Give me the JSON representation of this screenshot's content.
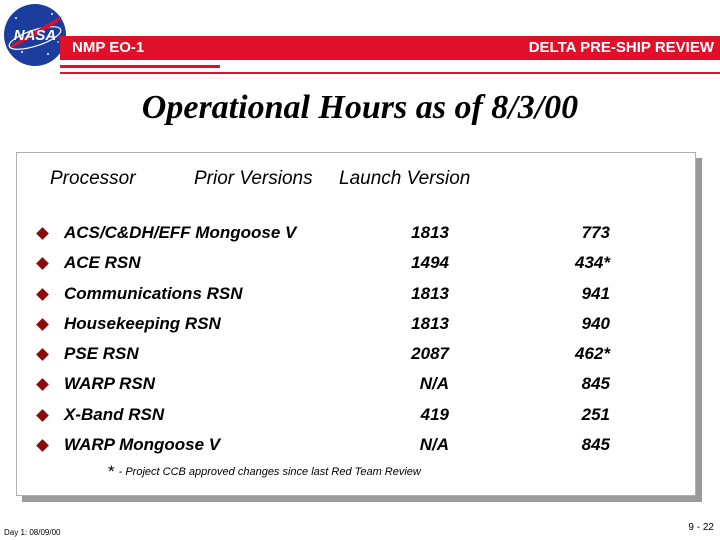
{
  "header": {
    "logo_text": "NASA",
    "left_label": "NMP EO-1",
    "right_label": "DELTA PRE-SHIP REVIEW",
    "bar_color": "#e0102a"
  },
  "title": "Operational Hours as of 8/3/00",
  "table": {
    "headers": {
      "processor": "Processor",
      "prior": "Prior Versions",
      "launch": "Launch Version"
    },
    "rows": [
      {
        "name": "ACS/C&DH/EFF Mongoose V",
        "prior": "1813",
        "launch": "773"
      },
      {
        "name": "ACE RSN",
        "prior": "1494",
        "launch": "434*"
      },
      {
        "name": "Communications RSN",
        "prior": "1813",
        "launch": "941"
      },
      {
        "name": "Housekeeping RSN",
        "prior": "1813",
        "launch": "940"
      },
      {
        "name": "PSE RSN",
        "prior": "2087",
        "launch": "462*"
      },
      {
        "name": "WARP RSN",
        "prior": "N/A",
        "launch": "845"
      },
      {
        "name": "X-Band RSN",
        "prior": "419",
        "launch": "251"
      },
      {
        "name": "WARP Mongoose V",
        "prior": "N/A",
        "launch": "845"
      }
    ],
    "bullet_color": "#8b0a0a"
  },
  "footnote": {
    "marker": "*",
    "text": "- Project CCB approved changes since last Red Team Review"
  },
  "footer": {
    "left": "Day 1: 08/09/00",
    "right": "9 - 22"
  }
}
